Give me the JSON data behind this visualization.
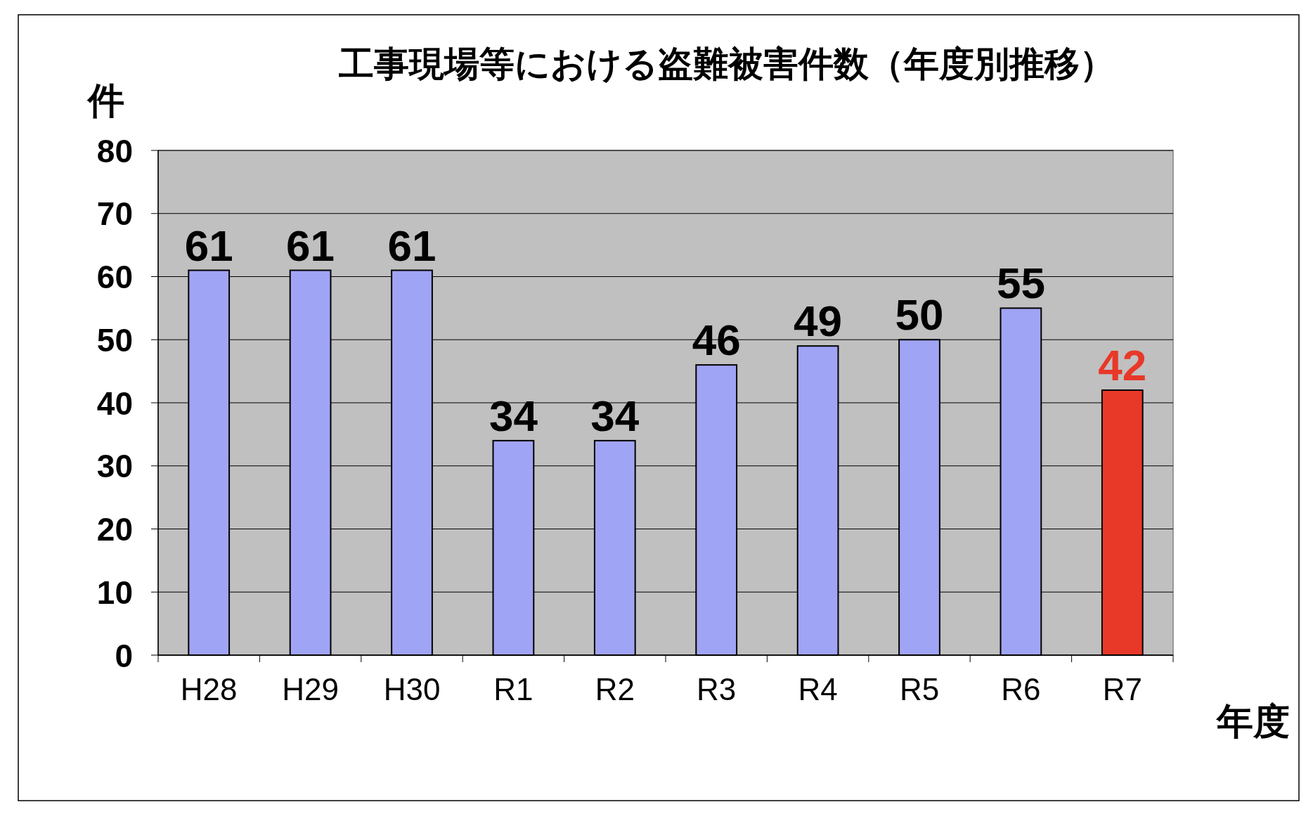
{
  "chart_data": {
    "type": "bar",
    "title": "工事現場等における盗難被害件数（年度別推移）",
    "xlabel": "年度",
    "ylabel": "件",
    "categories": [
      "H28",
      "H29",
      "H30",
      "R1",
      "R2",
      "R3",
      "R4",
      "R5",
      "R6",
      "R7"
    ],
    "values": [
      61,
      61,
      61,
      34,
      34,
      46,
      49,
      50,
      55,
      42
    ],
    "colors": [
      "#a0a4f4",
      "#a0a4f4",
      "#a0a4f4",
      "#a0a4f4",
      "#a0a4f4",
      "#a0a4f4",
      "#a0a4f4",
      "#a0a4f4",
      "#a0a4f4",
      "#e83828"
    ],
    "ylim": [
      0,
      80
    ],
    "yticks": [
      0,
      10,
      20,
      30,
      40,
      50,
      60,
      70,
      80
    ],
    "grid": "y",
    "data_labels": true
  }
}
